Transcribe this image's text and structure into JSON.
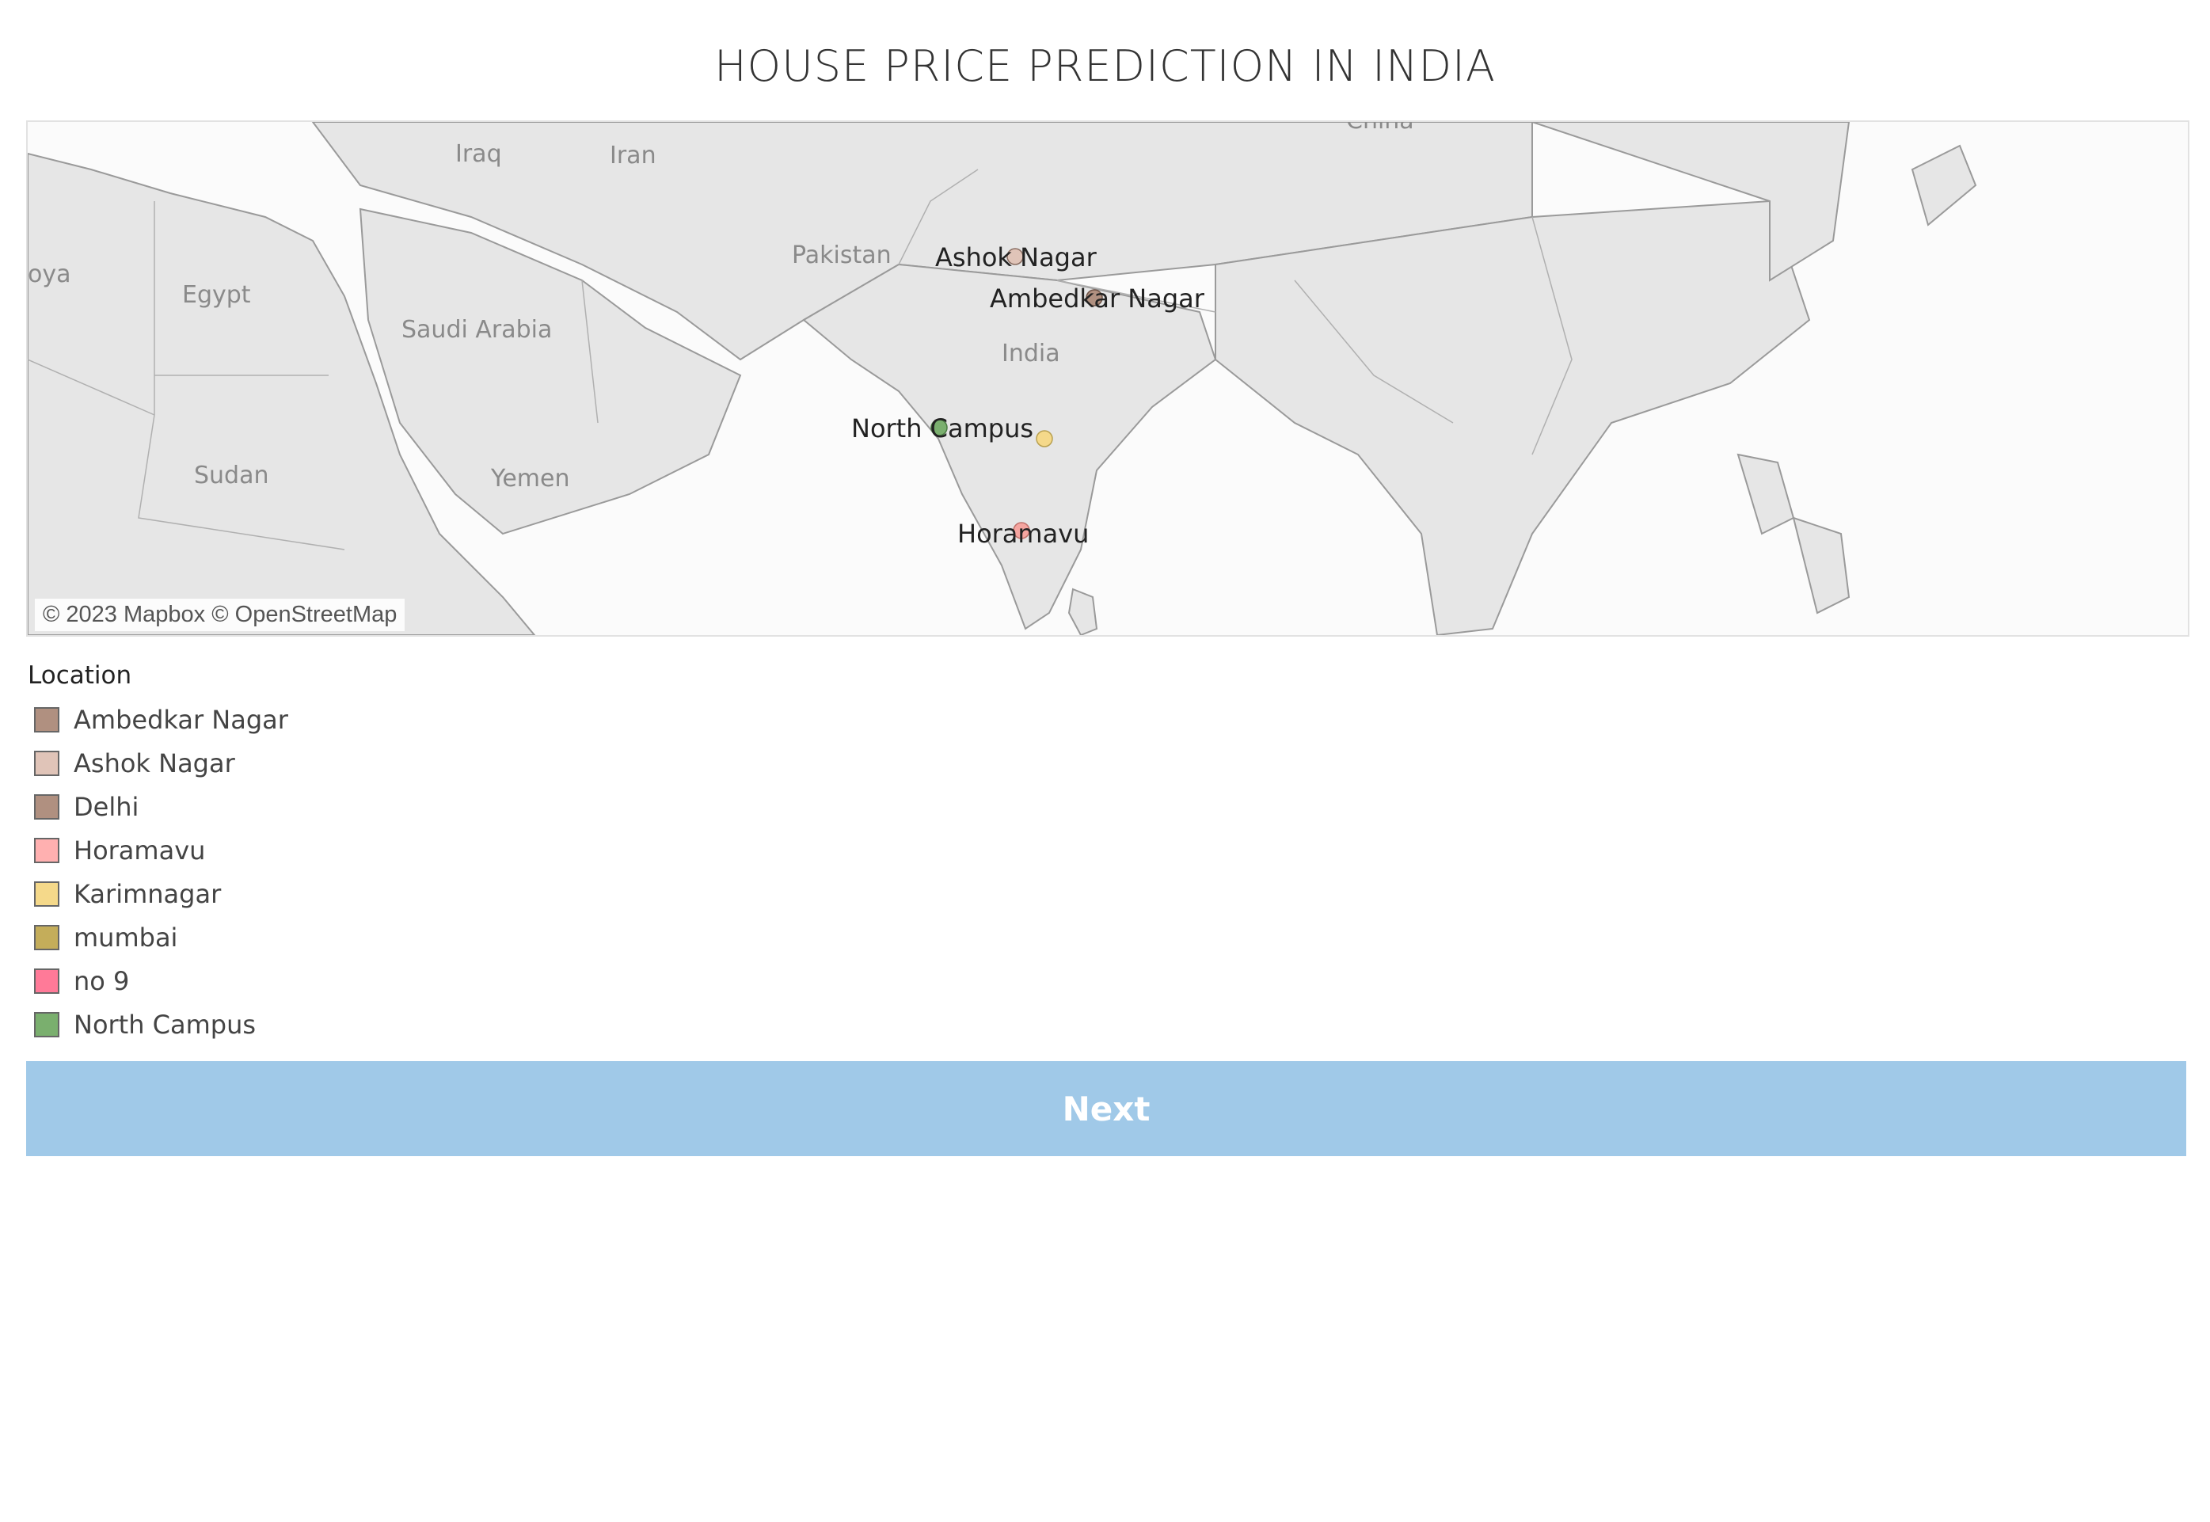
{
  "page": {
    "title": "HOUSE PRICE PREDICTION IN INDIA"
  },
  "map": {
    "country_labels": {
      "iraq": "Iraq",
      "iran": "Iran",
      "libya": "oya",
      "egypt": "Egypt",
      "pakistan": "Pakistan",
      "saudi_arabia": "Saudi Arabia",
      "india": "India",
      "sudan": "Sudan",
      "yemen": "Yemen",
      "china": "China"
    },
    "markers": [
      {
        "name": "Ashok Nagar",
        "color": "#e0c4b8"
      },
      {
        "name": "Ambedkar Nagar",
        "color": "#b09080"
      },
      {
        "name": "North Campus",
        "color": "#7aaf6e"
      },
      {
        "name": "Karimnagar",
        "color": "#f5d98a"
      },
      {
        "name": "Horamavu",
        "color": "#f5a5a0"
      }
    ],
    "marker_labels": {
      "ashok_nagar": "Ashok Nagar",
      "ambedkar_nagar": "Ambedkar Nagar",
      "north_campus": "North Campus",
      "horamavu": "Horamavu"
    },
    "attribution": "© 2023 Mapbox © OpenStreetMap"
  },
  "legend": {
    "title": "Location",
    "items": [
      {
        "label": "Ambedkar Nagar",
        "color": "#b09080"
      },
      {
        "label": "Ashok Nagar",
        "color": "#e0c4b8"
      },
      {
        "label": "Delhi",
        "color": "#b09080"
      },
      {
        "label": "Horamavu",
        "color": "#ffb0b0"
      },
      {
        "label": "Karimnagar",
        "color": "#f5d98a"
      },
      {
        "label": "mumbai",
        "color": "#c4ad5a"
      },
      {
        "label": "no 9",
        "color": "#ff7a98"
      },
      {
        "label": "North Campus",
        "color": "#7aaf6e"
      }
    ]
  },
  "next_button": {
    "label": "Next",
    "color": "#a0c9e8"
  }
}
